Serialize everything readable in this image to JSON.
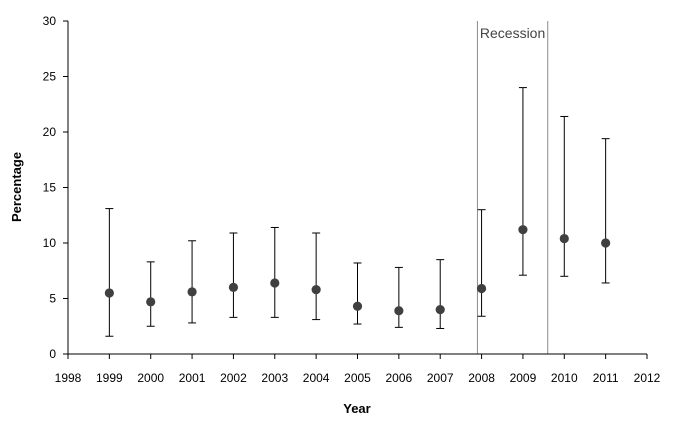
{
  "chart_data": {
    "type": "scatter",
    "title": "",
    "xlabel": "Year",
    "ylabel": "Percentage",
    "xlim": [
      1998,
      2012
    ],
    "ylim": [
      0,
      30
    ],
    "x_ticks": [
      "1998",
      "1999",
      "2000",
      "2001",
      "2002",
      "2003",
      "2004",
      "2005",
      "2006",
      "2007",
      "2008",
      "2009",
      "2010",
      "2011",
      "2012"
    ],
    "y_ticks": [
      "0",
      "5",
      "10",
      "15",
      "20",
      "25",
      "30"
    ],
    "grid": false,
    "legend": "none",
    "points": [
      {
        "x": 1999,
        "y": 5.5,
        "lower": 1.6,
        "upper": 13.1
      },
      {
        "x": 2000,
        "y": 4.7,
        "lower": 2.5,
        "upper": 8.3
      },
      {
        "x": 2001,
        "y": 5.6,
        "lower": 2.8,
        "upper": 10.2
      },
      {
        "x": 2002,
        "y": 6.0,
        "lower": 3.3,
        "upper": 10.9
      },
      {
        "x": 2003,
        "y": 6.4,
        "lower": 3.3,
        "upper": 11.4
      },
      {
        "x": 2004,
        "y": 5.8,
        "lower": 3.1,
        "upper": 10.9
      },
      {
        "x": 2005,
        "y": 4.3,
        "lower": 2.7,
        "upper": 8.2
      },
      {
        "x": 2006,
        "y": 3.9,
        "lower": 2.4,
        "upper": 7.8
      },
      {
        "x": 2007,
        "y": 4.0,
        "lower": 2.3,
        "upper": 8.5
      },
      {
        "x": 2008,
        "y": 5.9,
        "lower": 3.4,
        "upper": 13.0
      },
      {
        "x": 2009,
        "y": 11.2,
        "lower": 7.1,
        "upper": 24.0
      },
      {
        "x": 2010,
        "y": 10.4,
        "lower": 7.0,
        "upper": 21.4
      },
      {
        "x": 2011,
        "y": 10.0,
        "lower": 6.4,
        "upper": 19.4
      }
    ],
    "annotations": [
      {
        "text": "Recession",
        "x_start": 2007.9,
        "x_end": 2009.6
      }
    ],
    "colors": {
      "marker": "#404040",
      "errorbar": "#000000",
      "axis": "#000000",
      "recession_line": "#8c8c8c"
    }
  }
}
